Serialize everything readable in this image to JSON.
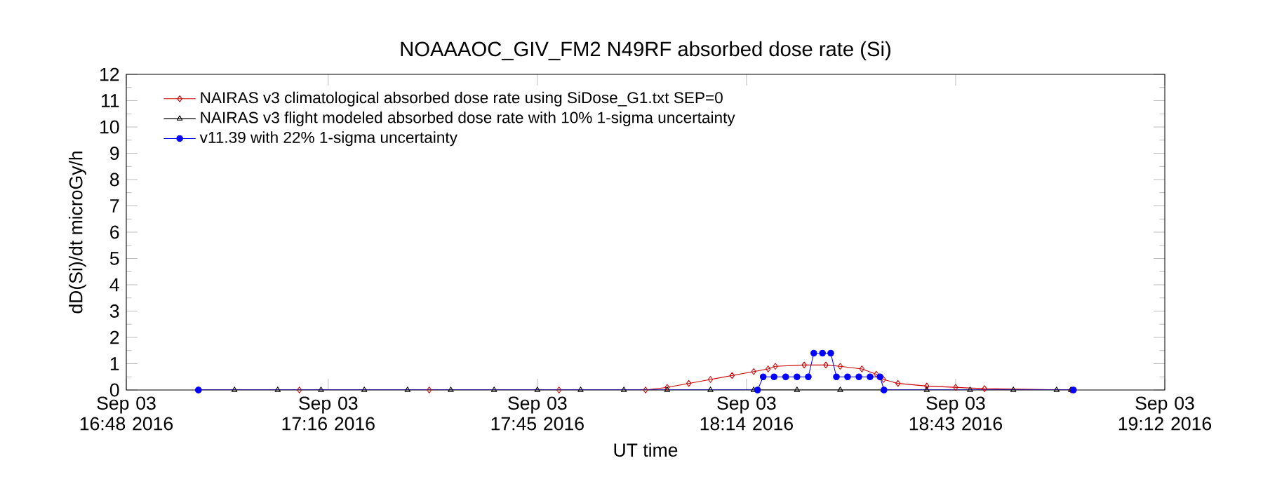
{
  "chart_data": {
    "type": "line",
    "title": "NOAAAOC_GIV_FM2   N49RF   absorbed dose rate (Si)",
    "xlabel": "UT time",
    "ylabel": "dD(Si)/dt microGy/h",
    "xlim": [
      "2016-09-03T16:48",
      "2016-09-03T19:12"
    ],
    "xticks": [
      {
        "value": "2016-09-03T16:48",
        "label": "Sep 03 16:48 2016"
      },
      {
        "value": "2016-09-03T17:16",
        "label": "Sep 03 17:16 2016"
      },
      {
        "value": "2016-09-03T17:45",
        "label": "Sep 03 17:45 2016"
      },
      {
        "value": "2016-09-03T18:14",
        "label": "Sep 03 18:14 2016"
      },
      {
        "value": "2016-09-03T18:43",
        "label": "Sep 03 18:43 2016"
      },
      {
        "value": "2016-09-03T19:12",
        "label": "Sep 03 19:12 2016"
      }
    ],
    "ylim": [
      0,
      12
    ],
    "yticks": [
      0,
      1,
      2,
      3,
      4,
      5,
      6,
      7,
      8,
      9,
      10,
      11,
      12
    ],
    "legend": "top left",
    "line_style": "solid",
    "series": [
      {
        "name": "NAIRAS v3 climatological absorbed dose rate using SiDose_G1.txt SEP=0",
        "color": "#cc0000",
        "marker": "diamond",
        "x": [
          "2016-09-03T16:58",
          "2016-09-03T17:12",
          "2016-09-03T17:30",
          "2016-09-03T17:48",
          "2016-09-03T18:00",
          "2016-09-03T18:03",
          "2016-09-03T18:06",
          "2016-09-03T18:09",
          "2016-09-03T18:12",
          "2016-09-03T18:15",
          "2016-09-03T18:17",
          "2016-09-03T18:18",
          "2016-09-03T18:22",
          "2016-09-03T18:25",
          "2016-09-03T18:27",
          "2016-09-03T18:30",
          "2016-09-03T18:32",
          "2016-09-03T18:33",
          "2016-09-03T18:35",
          "2016-09-03T18:39",
          "2016-09-03T18:43",
          "2016-09-03T18:47",
          "2016-09-03T18:59"
        ],
        "values": [
          0,
          0,
          0,
          0,
          0,
          0.1,
          0.25,
          0.4,
          0.55,
          0.7,
          0.8,
          0.9,
          0.95,
          0.95,
          0.9,
          0.8,
          0.6,
          0.4,
          0.25,
          0.15,
          0.1,
          0.05,
          0
        ]
      },
      {
        "name": "NAIRAS v3 flight modeled absorbed dose rate with 10% 1-sigma uncertainty",
        "color": "#000000",
        "marker": "triangle",
        "x": [
          "2016-09-03T16:58",
          "2016-09-03T17:03",
          "2016-09-03T17:09",
          "2016-09-03T17:15",
          "2016-09-03T17:21",
          "2016-09-03T17:27",
          "2016-09-03T17:33",
          "2016-09-03T17:39",
          "2016-09-03T17:45",
          "2016-09-03T17:51",
          "2016-09-03T17:57",
          "2016-09-03T18:03",
          "2016-09-03T18:09",
          "2016-09-03T18:15",
          "2016-09-03T18:21",
          "2016-09-03T18:27",
          "2016-09-03T18:33",
          "2016-09-03T18:39",
          "2016-09-03T18:45",
          "2016-09-03T18:51",
          "2016-09-03T18:57",
          "2016-09-03T18:59"
        ],
        "values": [
          0,
          0,
          0,
          0,
          0,
          0,
          0,
          0,
          0,
          0,
          0,
          0,
          0,
          0,
          0,
          0,
          0,
          0,
          0,
          0,
          0,
          0
        ]
      },
      {
        "name": "v11.39 with 22% 1-sigma uncertainty",
        "color": "#0000ff",
        "marker": "circle",
        "x": [
          "2016-09-03T16:58:00",
          "2016-09-03T18:15:32",
          "2016-09-03T18:16:19",
          "2016-09-03T18:17:49",
          "2016-09-03T18:19:26",
          "2016-09-03T18:21:00",
          "2016-09-03T18:22:34",
          "2016-09-03T18:23:20",
          "2016-09-03T18:24:32",
          "2016-09-03T18:25:41",
          "2016-09-03T18:26:28",
          "2016-09-03T18:28:01",
          "2016-09-03T18:29:35",
          "2016-09-03T18:31:08",
          "2016-09-03T18:32:31",
          "2016-09-03T18:33:04",
          "2016-09-03T18:59:20"
        ],
        "values": [
          0,
          0,
          0.5,
          0.5,
          0.5,
          0.5,
          0.5,
          1.4,
          1.4,
          1.4,
          0.5,
          0.5,
          0.5,
          0.5,
          0.5,
          0,
          0
        ]
      }
    ]
  }
}
